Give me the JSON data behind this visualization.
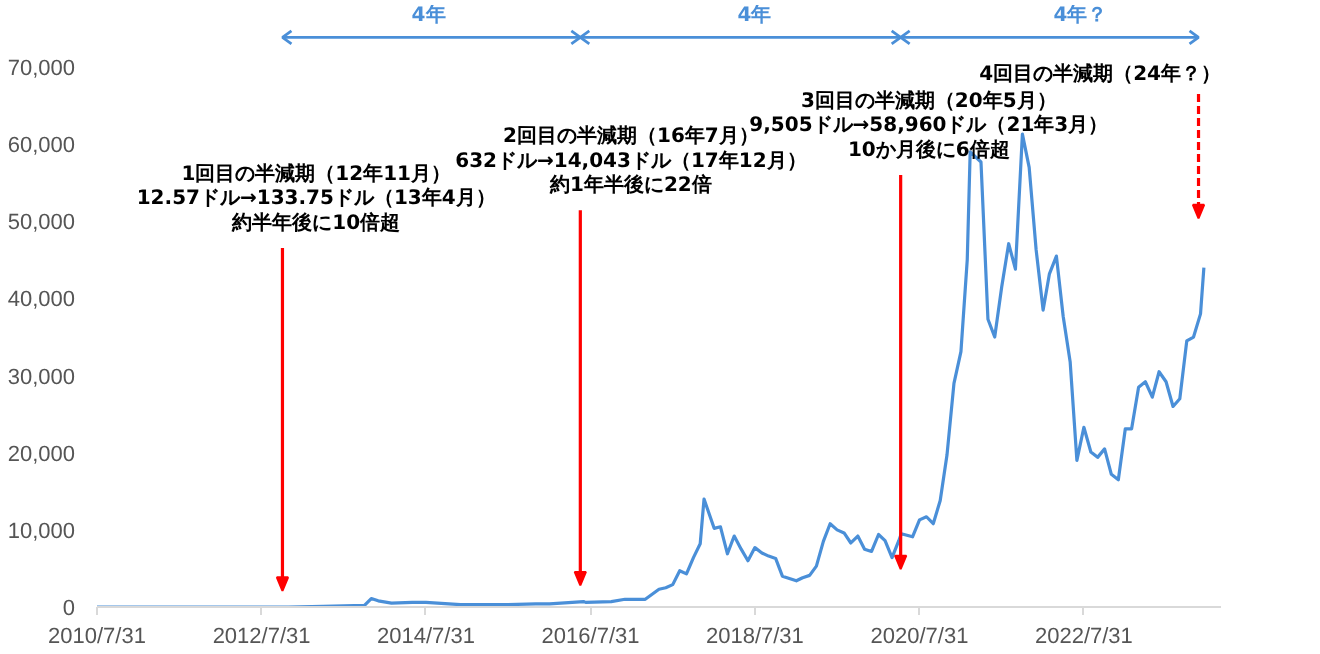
{
  "chart_data": {
    "type": "line",
    "x": [
      "2010-07-31",
      "2011-06-30",
      "2012-07-31",
      "2012-11-28",
      "2013-04-30",
      "2013-10-31",
      "2013-11-30",
      "2013-12-31",
      "2014-02-28",
      "2014-05-31",
      "2014-07-31",
      "2014-12-31",
      "2015-06-30",
      "2015-11-30",
      "2016-01-31",
      "2016-06-30",
      "2016-07-09",
      "2016-10-31",
      "2016-12-31",
      "2017-03-31",
      "2017-05-31",
      "2017-06-30",
      "2017-07-31",
      "2017-08-31",
      "2017-09-30",
      "2017-10-31",
      "2017-11-30",
      "2017-12-17",
      "2018-01-31",
      "2018-02-28",
      "2018-03-31",
      "2018-04-30",
      "2018-05-31",
      "2018-06-30",
      "2018-07-31",
      "2018-08-31",
      "2018-09-30",
      "2018-10-31",
      "2018-11-30",
      "2018-12-31",
      "2019-01-31",
      "2019-02-28",
      "2019-03-31",
      "2019-04-30",
      "2019-05-31",
      "2019-06-30",
      "2019-07-31",
      "2019-08-31",
      "2019-09-30",
      "2019-10-31",
      "2019-11-30",
      "2019-12-31",
      "2020-01-31",
      "2020-02-29",
      "2020-03-31",
      "2020-04-30",
      "2020-05-11",
      "2020-06-30",
      "2020-07-31",
      "2020-08-31",
      "2020-09-30",
      "2020-10-31",
      "2020-11-30",
      "2020-12-31",
      "2021-01-31",
      "2021-02-28",
      "2021-03-13",
      "2021-04-30",
      "2021-05-31",
      "2021-06-30",
      "2021-07-31",
      "2021-08-31",
      "2021-09-30",
      "2021-10-31",
      "2021-11-30",
      "2021-12-31",
      "2022-01-31",
      "2022-02-28",
      "2022-03-31",
      "2022-04-30",
      "2022-05-31",
      "2022-06-30",
      "2022-07-31",
      "2022-08-31",
      "2022-09-30",
      "2022-10-31",
      "2022-11-30",
      "2022-12-31",
      "2023-01-31",
      "2023-02-28",
      "2023-03-31",
      "2023-04-30",
      "2023-05-31",
      "2023-06-30",
      "2023-07-31",
      "2023-08-31",
      "2023-09-30",
      "2023-10-31",
      "2023-11-30",
      "2023-12-31",
      "2024-01-15"
    ],
    "series": [
      {
        "color": "#4a8fd8",
        "values": [
          0,
          0,
          0,
          0,
          100,
          200,
          1100,
          800,
          500,
          600,
          600,
          300,
          300,
          400,
          400,
          700,
          600,
          700,
          1000,
          1000,
          2300,
          2500,
          2900,
          4700,
          4300,
          6400,
          8200,
          14000,
          10200,
          10400,
          6900,
          9200,
          7500,
          6000,
          7700,
          7000,
          6600,
          6300,
          4000,
          3700,
          3400,
          3800,
          4100,
          5300,
          8500,
          10800,
          10000,
          9600,
          8300,
          9200,
          7500,
          7200,
          9400,
          8600,
          6400,
          8600,
          9500,
          9100,
          11300,
          11700,
          10800,
          13800,
          19700,
          29000,
          33100,
          45000,
          59000,
          57700,
          37300,
          35000,
          41500,
          47100,
          43800,
          61300,
          57000,
          46300,
          38500,
          43200,
          45500,
          37700,
          31800,
          19000,
          23300,
          20100,
          19400,
          20500,
          17200,
          16500,
          23100,
          23100,
          28500,
          29200,
          27200,
          30500,
          29200,
          26000,
          27000,
          34500,
          35000,
          38000,
          44000
        ]
      }
    ],
    "xlim": [
      "2010-07-31",
      "2024-03-31"
    ],
    "xticks": [
      {
        "value": "2010-07-31",
        "label": "2010/7/31"
      },
      {
        "value": "2012-07-31",
        "label": "2012/7/31"
      },
      {
        "value": "2014-07-31",
        "label": "2014/7/31"
      },
      {
        "value": "2016-07-31",
        "label": "2016/7/31"
      },
      {
        "value": "2018-07-31",
        "label": "2018/7/31"
      },
      {
        "value": "2020-07-31",
        "label": "2020/7/31"
      },
      {
        "value": "2022-07-31",
        "label": "2022/7/31"
      }
    ],
    "ylim": [
      0,
      70000
    ],
    "yticks": [
      0,
      {
        "value": 10000,
        "label": "10,000"
      },
      {
        "value": 20000,
        "label": "20,000"
      },
      {
        "value": 30000,
        "label": "30,000"
      },
      {
        "value": 40000,
        "label": "40,000"
      },
      {
        "value": 50000,
        "label": "50,000"
      },
      {
        "value": 60000,
        "label": "60,000"
      },
      {
        "value": 70000,
        "label": "70,000"
      }
    ],
    "grid": false,
    "annotations": [
      "1回目の半減期（12年11月）",
      "12.57ドル→133.75ドル（13年4月）",
      "約半年後に10倍超",
      "2回目の半減期（16年7月）",
      "632ドル→14,043ドル（17年12月）",
      "約1年半後に22倍",
      "3回目の半減期（20年5月）",
      "9,505ドル→58,960ドル（21年3月）",
      "10か月後に6倍超",
      "4回目の半減期（24年？）",
      "4年",
      "4年",
      "4年？"
    ]
  }
}
